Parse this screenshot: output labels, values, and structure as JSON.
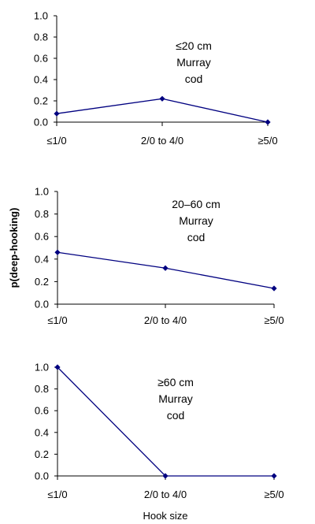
{
  "chart_data": [
    {
      "type": "line",
      "categories": [
        "≤1/0",
        "2/0 to 4/0",
        "≥5/0"
      ],
      "series": [
        {
          "values": [
            0.08,
            0.22,
            0.0
          ]
        }
      ],
      "annotation": [
        "≤20 cm",
        "Murray",
        "cod"
      ],
      "yticks": [
        "0.0",
        "0.2",
        "0.4",
        "0.6",
        "0.8",
        "1.0"
      ],
      "ylim": [
        0,
        1
      ],
      "xlabel": "",
      "ylabel": ""
    },
    {
      "type": "line",
      "categories": [
        "≤1/0",
        "2/0 to 4/0",
        "≥5/0"
      ],
      "series": [
        {
          "values": [
            0.46,
            0.32,
            0.14
          ]
        }
      ],
      "annotation": [
        "20–60 cm",
        "Murray",
        "cod"
      ],
      "yticks": [
        "0.0",
        "0.2",
        "0.4",
        "0.6",
        "0.8",
        "1.0"
      ],
      "ylim": [
        0,
        1
      ],
      "xlabel": "",
      "ylabel": "p(deep-hooking)"
    },
    {
      "type": "line",
      "categories": [
        "≤1/0",
        "2/0 to 4/0",
        "≥5/0"
      ],
      "series": [
        {
          "values": [
            1.0,
            0.0,
            0.0
          ]
        }
      ],
      "annotation": [
        "≥60 cm",
        "Murray",
        "cod"
      ],
      "yticks": [
        "0.0",
        "0.2",
        "0.4",
        "0.6",
        "0.8",
        "1.0"
      ],
      "ylim": [
        0,
        1
      ],
      "xlabel": "Hook size",
      "ylabel": ""
    }
  ],
  "colors": {
    "line": "#000080",
    "marker": "#000080",
    "axis": "#000000"
  }
}
